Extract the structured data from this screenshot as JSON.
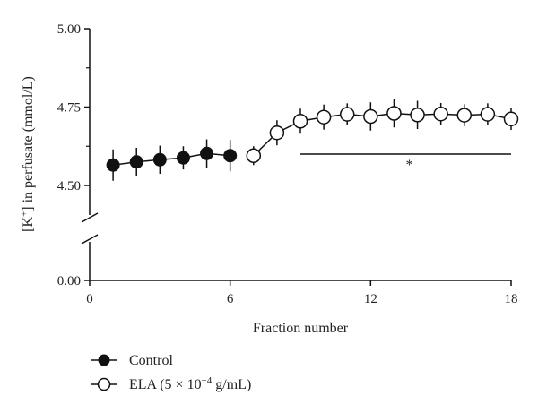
{
  "chart_data": {
    "type": "scatter",
    "xlabel": "Fraction number",
    "ylabel_prefix": "[K",
    "ylabel_sup": "+",
    "ylabel_suffix": "] in perfusate (mmol/L)",
    "x_ticks": [
      "0",
      "6",
      "12",
      "18"
    ],
    "x_tick_values": [
      0,
      6,
      12,
      18
    ],
    "y_ticks_upper": [
      "4.50",
      "4.75",
      "5.00"
    ],
    "y_tick_upper_values": [
      4.5,
      4.75,
      5.0
    ],
    "y_tick_lower": "0.00",
    "xlim": [
      0,
      18
    ],
    "ylim_upper": [
      4.5,
      5.0
    ],
    "axis_break": true,
    "series": [
      {
        "name": "Control",
        "marker": "filled-circle",
        "x": [
          1,
          2,
          3,
          4,
          5,
          6
        ],
        "y": [
          4.565,
          4.575,
          4.582,
          4.588,
          4.602,
          4.595
        ],
        "err": [
          0.05,
          0.045,
          0.045,
          0.037,
          0.045,
          0.05
        ]
      },
      {
        "name_prefix": "ELA (5 × 10",
        "name_sup": "−4",
        "name_suffix": " g/mL)",
        "marker": "open-circle",
        "x": [
          7,
          8,
          9,
          10,
          11,
          12,
          13,
          14,
          15,
          16,
          17,
          18
        ],
        "y": [
          4.595,
          4.668,
          4.705,
          4.718,
          4.727,
          4.72,
          4.73,
          4.725,
          4.728,
          4.724,
          4.727,
          4.712
        ],
        "err": [
          0.03,
          0.04,
          0.04,
          0.04,
          0.035,
          0.045,
          0.045,
          0.045,
          0.035,
          0.035,
          0.035,
          0.035
        ]
      }
    ],
    "significance": {
      "label": "*",
      "x_start": 9,
      "x_end": 18,
      "y": 4.6
    }
  }
}
